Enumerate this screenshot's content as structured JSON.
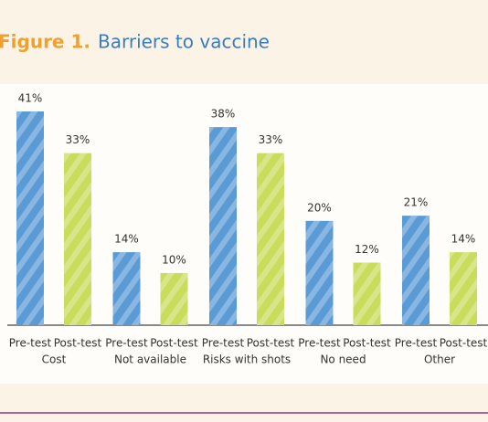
{
  "chart_data": {
    "type": "bar",
    "title_prefix": "Figure 1.",
    "title": "Barriers to vaccine",
    "categories": [
      "Cost",
      "Not available",
      "Risks with shots",
      "No need",
      "Other"
    ],
    "series": [
      {
        "name": "Pre-test",
        "color": "#5b9bd5",
        "values": [
          41,
          14,
          38,
          20,
          21
        ],
        "value_labels": [
          "41%",
          "14%",
          "38%",
          "20%",
          "21%"
        ]
      },
      {
        "name": "Post-test",
        "color": "#c9dd5c",
        "values": [
          33,
          10,
          33,
          12,
          14
        ],
        "value_labels": [
          "33%",
          "10%",
          "33%",
          "12%",
          "14%"
        ]
      }
    ]
  }
}
